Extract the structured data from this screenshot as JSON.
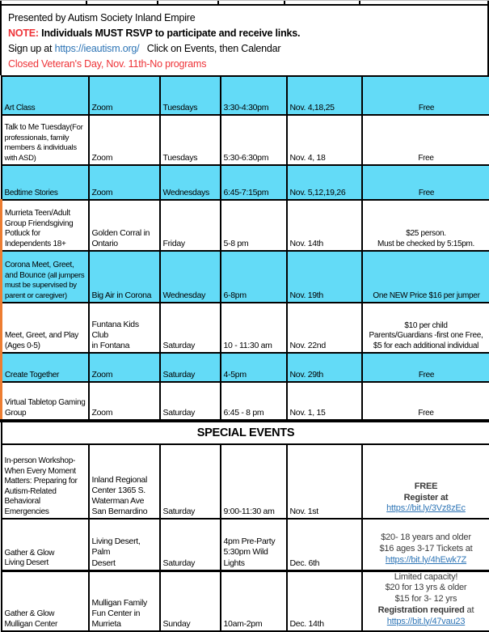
{
  "header": {
    "line1": "Presented by Autism Society Inland Empire",
    "note_label": "NOTE:",
    "note_text": "Individuals MUST RSVP to participate and receive links.",
    "signup_prefix": "Sign up at",
    "signup_link": "https://ieautism.org/",
    "signup_suffix": "Click on Events, then Calendar",
    "closed_notice": "Closed Veteran's Day, Nov. 11th-No programs"
  },
  "colors": {
    "row_highlight_cyan": "#63DBF7",
    "accent_orange": "#ED7D31",
    "alert_red": "#EE3338",
    "link_blue": "#2E75B6"
  },
  "special_events_title": "SPECIAL EVENTS",
  "programs": [
    {
      "highlight": true,
      "accent": false,
      "name": "Art Class",
      "location": "Zoom",
      "day": "Tuesdays",
      "time": "3:30-4:30pm",
      "dates": "Nov. 4,18,25",
      "price_lines": [
        "Free"
      ]
    },
    {
      "highlight": false,
      "accent": false,
      "name": "Talk to Me Tuesday",
      "name_note": "(For professionals, family members & individuals with ASD)",
      "location": "Zoom",
      "day": "Tuesdays",
      "time": "5:30-6:30pm",
      "dates": "Nov. 4, 18",
      "price_lines": [
        "Free"
      ]
    },
    {
      "highlight": true,
      "accent": false,
      "name": "Bedtime Stories",
      "location": "Zoom",
      "day": "Wednesdays",
      "time": "6:45-7:15pm",
      "dates": "Nov. 5,12,19,26",
      "price_lines": [
        "Free"
      ]
    },
    {
      "highlight": false,
      "accent": true,
      "name": "Murrieta Teen/Adult\nGroup Friendsgiving\nPotluck for\nIndependents 18+",
      "location": "Golden Corral in\nOntario",
      "day": "Friday",
      "time": "5-8 pm",
      "dates": "Nov. 14th",
      "price_lines": [
        "$25 person.",
        "Must be checked by 5:15pm."
      ]
    },
    {
      "highlight": true,
      "accent": true,
      "name": "Corona Meet, Greet, and Bounce ",
      "name_note": "(all jumpers must be supervised by parent or caregiver)",
      "location": "Big Air in Corona",
      "day": "Wednesday",
      "time": "6-8pm",
      "dates": "Nov. 19th",
      "price_lines": [
        "One NEW Price  $16 per jumper"
      ]
    },
    {
      "highlight": false,
      "accent": true,
      "name": "Meet, Greet, and Play\n(Ages 0-5)",
      "location": "Funtana Kids Club\nin Fontana",
      "day": "Saturday",
      "time": "10 - 11:30 am",
      "dates": "Nov. 22nd",
      "price_lines": [
        "$10 per child",
        "Parents/Guardians -first one Free,",
        "$5 for each additional individual"
      ]
    },
    {
      "highlight": true,
      "accent": true,
      "name": "Create Together",
      "location": "Zoom",
      "day": "Saturday",
      "time": "4-5pm",
      "dates": "Nov. 29th",
      "price_lines": [
        "Free"
      ]
    },
    {
      "highlight": false,
      "accent": true,
      "name": "Virtual Tabletop Gaming\nGroup",
      "location": "Zoom",
      "day": "Saturday",
      "time": "6:45 - 8 pm",
      "dates": "Nov. 1, 15",
      "price_lines": [
        "Free"
      ]
    }
  ],
  "special_events": [
    {
      "name": "In-person Workshop-\nWhen Every Moment\nMatters: Preparing for\nAutism-Related\nBehavioral Emergencies",
      "location": "Inland Regional\nCenter  1365 S.\nWaterman Ave\nSan Bernardino",
      "day": "Saturday",
      "time": "9:00-11:30 am",
      "dates": "Nov. 1st",
      "price_bold": true,
      "price_lines": [
        "FREE",
        "Register at"
      ],
      "price_link": "https://bit.ly/3Vz8zEc"
    },
    {
      "name": "Gather & Glow\nLiving Desert",
      "location": "Living Desert, Palm\nDesert",
      "day": "Saturday",
      "time": "4pm Pre-Party\n5:30pm Wild\nLights",
      "dates": "Dec. 6th",
      "price_lines": [
        "$20- 18 years and older",
        "$16 ages 3-17  Tickets at"
      ],
      "price_link": "https://bit.ly/4hEwk7Z"
    },
    {
      "name": "Gather & Glow\nMulligan Center",
      "location": "Mulligan Family\nFun Center in\nMurrieta",
      "day": "Sunday",
      "time": "10am-2pm",
      "dates": "Dec. 14th",
      "price_lines": [
        "Limited capacity!",
        "$20 for 13 yrs & older",
        "$15 for 3- 12 yrs",
        [
          {
            "t": "Registration required",
            "b": true
          },
          {
            "t": " at",
            "b": false
          }
        ]
      ],
      "price_link": "https://bit.ly/47vau23"
    }
  ]
}
